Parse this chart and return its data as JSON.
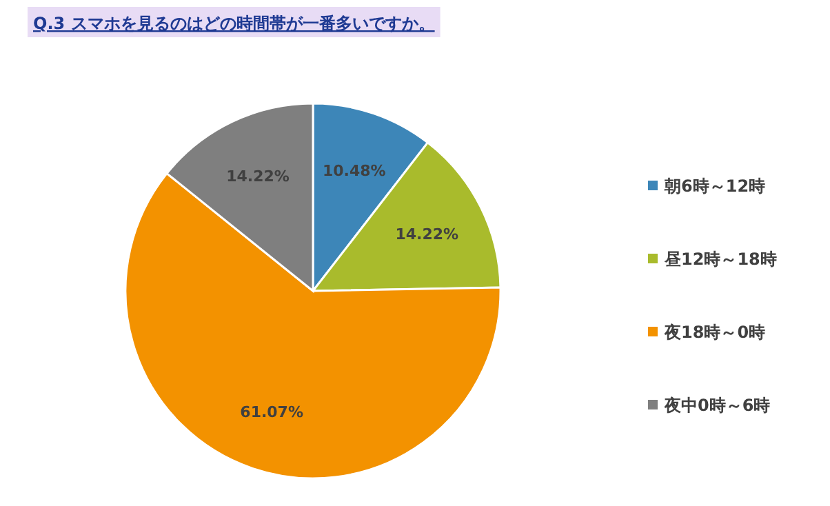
{
  "chart_data": {
    "type": "pie",
    "title": "Q.3 スマホを見るのはどの時間帯が一番多いですか。",
    "categories": [
      "朝6時～12時",
      "昼12時～18時",
      "夜18時～0時",
      "夜中0時～6時"
    ],
    "values": [
      10.48,
      14.22,
      61.07,
      14.22
    ],
    "colors": [
      "#3d86b8",
      "#a9bb2c",
      "#f39200",
      "#7f7f7f"
    ],
    "value_labels": [
      "10.48%",
      "14.22%",
      "61.07%",
      "14.22%"
    ],
    "legend": "right"
  }
}
